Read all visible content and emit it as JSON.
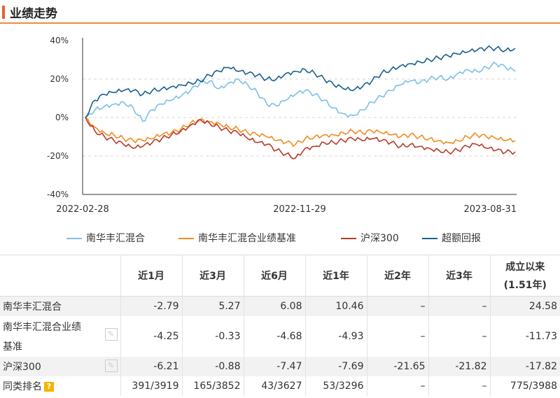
{
  "header": {
    "title": "业绩走势"
  },
  "chart_data": {
    "type": "line",
    "x_ticks": [
      "2022-02-28",
      "2022-11-29",
      "2023-08-31"
    ],
    "y_ticks": [
      "40%",
      "20%",
      "0%",
      "-20%",
      "-40%"
    ],
    "ylim": [
      -40,
      40
    ],
    "grid": true,
    "legend_position": "bottom",
    "series": [
      {
        "name": "南华丰汇混合",
        "color": "#7cbfe6",
        "values": [
          0,
          4,
          6,
          7,
          8,
          5,
          -2,
          4,
          7,
          9,
          11,
          14,
          18,
          19,
          15,
          18,
          20,
          17,
          13,
          7,
          6,
          9,
          12,
          14,
          12,
          9,
          5,
          2,
          1,
          4,
          8,
          11,
          14,
          17,
          19,
          18,
          20,
          21,
          20,
          23,
          25,
          24,
          26,
          28,
          26,
          24
        ]
      },
      {
        "name": "南华丰汇混合业绩基准",
        "color": "#f08c1e",
        "values": [
          0,
          -5,
          -8,
          -9,
          -11,
          -12,
          -12,
          -11,
          -9,
          -8,
          -6,
          -3,
          -1,
          -2,
          -3,
          -5,
          -6,
          -8,
          -9,
          -10,
          -12,
          -13,
          -14,
          -11,
          -10,
          -9,
          -9,
          -8,
          -7,
          -8,
          -7,
          -8,
          -9,
          -10,
          -9,
          -10,
          -11,
          -12,
          -13,
          -12,
          -10,
          -9,
          -10,
          -11,
          -12,
          -12
        ]
      },
      {
        "name": "沪深300",
        "color": "#b83a2b",
        "values": [
          0,
          -7,
          -10,
          -12,
          -14,
          -16,
          -15,
          -13,
          -11,
          -9,
          -7,
          -4,
          -1,
          -3,
          -5,
          -7,
          -8,
          -11,
          -13,
          -14,
          -17,
          -19,
          -21,
          -16,
          -15,
          -13,
          -13,
          -12,
          -11,
          -12,
          -11,
          -12,
          -13,
          -15,
          -14,
          -15,
          -16,
          -17,
          -18,
          -17,
          -15,
          -14,
          -16,
          -17,
          -18,
          -17.8
        ]
      },
      {
        "name": "超额回报",
        "color": "#1a5f8c",
        "values": [
          0,
          9,
          12,
          13,
          14,
          14,
          12,
          14,
          15,
          16,
          17,
          18,
          19,
          22,
          24,
          26,
          24,
          23,
          22,
          20,
          20,
          23,
          24,
          25,
          23,
          20,
          17,
          15,
          14,
          16,
          19,
          23,
          25,
          27,
          28,
          29,
          30,
          31,
          32,
          33,
          34,
          35,
          36,
          36,
          35,
          36
        ]
      }
    ]
  },
  "table": {
    "headers": [
      "近1月",
      "近3月",
      "近6月",
      "近1年",
      "近2年",
      "近3年"
    ],
    "since_inception_label": "成立以来",
    "since_inception_sub": "(1.51年)",
    "rows": [
      {
        "name": "南华丰汇混合",
        "values": [
          "-2.79",
          "5.27",
          "6.08",
          "10.46",
          "–",
          "–",
          "24.58"
        ]
      },
      {
        "name_line1": "南华丰汇混合业绩",
        "name_line2": "基准",
        "values": [
          "-4.25",
          "-0.33",
          "-4.68",
          "-4.93",
          "–",
          "–",
          "-11.73"
        ]
      },
      {
        "name": "沪深300",
        "values": [
          "-6.21",
          "-0.88",
          "-7.47",
          "-7.69",
          "-21.65",
          "-21.82",
          "-17.82"
        ]
      },
      {
        "name": "同类排名",
        "values": [
          "391/3919",
          "165/3852",
          "43/3627",
          "53/3296",
          "–",
          "–",
          "775/3988"
        ]
      }
    ]
  }
}
